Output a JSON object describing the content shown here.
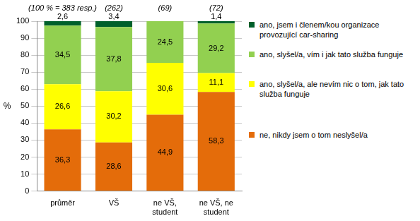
{
  "chart_data": {
    "type": "bar",
    "stacked": true,
    "data_labels": true,
    "grid": true,
    "legend": "right",
    "y_label": "%",
    "categories": [
      "průměr",
      "VŠ",
      "ne VŠ, student",
      "ne VŠ, ne student"
    ],
    "annotations": [
      {
        "category": "průměr",
        "text": "(100 % = 383 resp.)"
      },
      {
        "category": "VŠ",
        "text": "(262)"
      },
      {
        "category": "ne VŠ, student",
        "text": "(69)"
      },
      {
        "category": "ne VŠ, ne student",
        "text": "(72)"
      }
    ],
    "series": [
      {
        "name": "ne, nikdy jsem o tom neslyšel/a",
        "color": "#e46c0a",
        "values": [
          36.3,
          28.6,
          44.9,
          58.3
        ],
        "value_labels": [
          "36,3",
          "28,6",
          "44,9",
          "58,3"
        ]
      },
      {
        "name": "ano, slyšel/a, ale nevím nic o tom, jak tato služba funguje",
        "color": "#ffff00",
        "values": [
          26.6,
          30.2,
          30.6,
          11.1
        ],
        "value_labels": [
          "26,6",
          "30,2",
          "30,6",
          "11,1"
        ]
      },
      {
        "name": "ano, slyšel/a, vím i jak tato služba funguje",
        "color": "#92d050",
        "values": [
          34.5,
          37.8,
          24.5,
          29.2
        ],
        "value_labels": [
          "34,5",
          "37,8",
          "24,5",
          "29,2"
        ]
      },
      {
        "name": "ano, jsem i členem/kou organizace provozující car-sharing",
        "color": "#00602b",
        "values": [
          2.6,
          3.4,
          null,
          1.4
        ],
        "value_labels": [
          "2,6",
          "3,4",
          null,
          "1,4"
        ]
      }
    ],
    "ylim": [
      0,
      100
    ],
    "yticks": [
      0,
      10,
      20,
      30,
      40,
      50,
      60,
      70,
      80,
      90,
      100
    ]
  }
}
